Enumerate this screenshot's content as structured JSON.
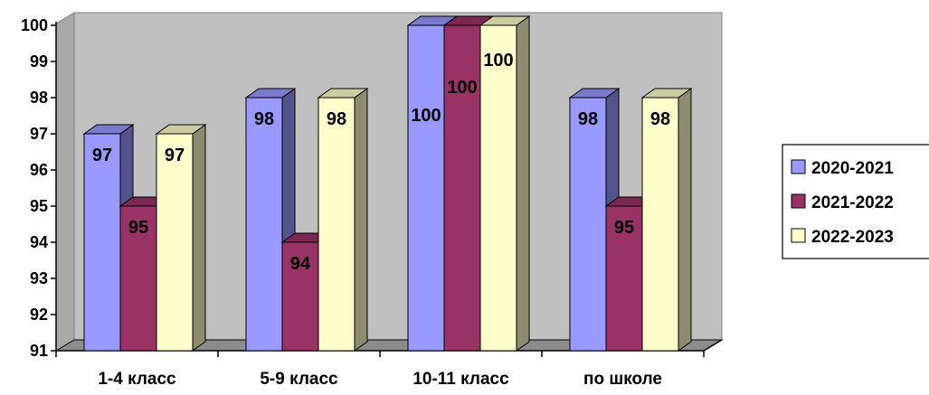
{
  "chart_data": {
    "type": "bar",
    "categories": [
      "1-4 класс",
      "5-9 класс",
      "10-11 класс",
      "по школе"
    ],
    "series": [
      {
        "name": "2020-2021",
        "values": [
          97,
          98,
          100,
          98
        ],
        "color": "#9999ff"
      },
      {
        "name": "2021-2022",
        "values": [
          95,
          94,
          100,
          95
        ],
        "color": "#993366"
      },
      {
        "name": "2022-2023",
        "values": [
          97,
          98,
          100,
          98
        ],
        "color": "#ffffcc"
      }
    ],
    "y_ticks": [
      "91",
      "92",
      "93",
      "94",
      "95",
      "96",
      "97",
      "98",
      "99",
      "100"
    ],
    "ylim": [
      91,
      100
    ],
    "legend_position": "right",
    "grid": false,
    "plot_background": "#c0c0c0",
    "style": "3d-clustered-column"
  }
}
